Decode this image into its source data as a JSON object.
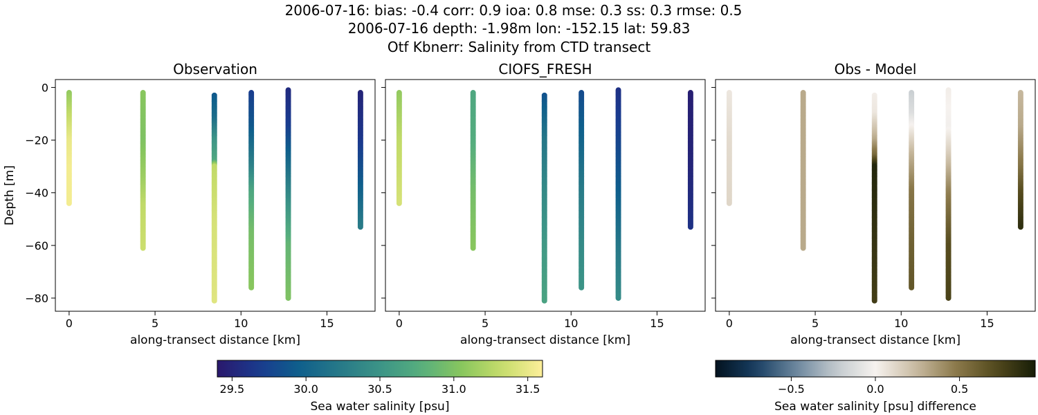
{
  "figure": {
    "title_lines": [
      "2006-07-16: bias: -0.4  corr: 0.9  ioa: 0.8  mse: 0.3  ss: 0.3  rmse: 0.5",
      "2006-07-16 depth: -1.98m lon: -152.15 lat: 59.83",
      "Otf Kbnerr: Salinity from CTD transect"
    ]
  },
  "chart_data": [
    {
      "type": "scatter",
      "title": "Observation",
      "xlabel": "along-transect distance [km]",
      "ylabel": "Depth [m]",
      "xlim": [
        -0.8,
        17.8
      ],
      "ylim": [
        -85,
        3
      ],
      "xticks": [
        0,
        5,
        10,
        15
      ],
      "yticks": [
        0,
        -20,
        -40,
        -60,
        -80
      ],
      "grid": false,
      "colormap": "haline",
      "vmin": 29.4,
      "vmax": 31.6,
      "profiles": [
        {
          "x": 0.0,
          "top": -2,
          "bottom": -44,
          "values": [
            [
              -2,
              31.1
            ],
            [
              -10,
              31.3
            ],
            [
              -20,
              31.5
            ],
            [
              -30,
              31.55
            ],
            [
              -44,
              31.55
            ]
          ]
        },
        {
          "x": 4.3,
          "top": -2,
          "bottom": -61,
          "values": [
            [
              -2,
              31.05
            ],
            [
              -20,
              31.0
            ],
            [
              -35,
              31.15
            ],
            [
              -45,
              31.3
            ],
            [
              -61,
              31.35
            ]
          ]
        },
        {
          "x": 8.45,
          "top": -3,
          "bottom": -81,
          "values": [
            [
              -3,
              29.9
            ],
            [
              -12,
              30.1
            ],
            [
              -20,
              30.5
            ],
            [
              -28,
              30.7
            ],
            [
              -30,
              31.3
            ],
            [
              -50,
              31.4
            ],
            [
              -81,
              31.45
            ]
          ]
        },
        {
          "x": 10.6,
          "top": -2,
          "bottom": -76,
          "values": [
            [
              -2,
              29.7
            ],
            [
              -15,
              29.9
            ],
            [
              -30,
              30.3
            ],
            [
              -40,
              30.7
            ],
            [
              -55,
              30.95
            ],
            [
              -76,
              31.05
            ]
          ]
        },
        {
          "x": 12.75,
          "top": -1,
          "bottom": -80,
          "values": [
            [
              -1,
              29.55
            ],
            [
              -15,
              29.7
            ],
            [
              -30,
              30.1
            ],
            [
              -45,
              30.5
            ],
            [
              -60,
              30.85
            ],
            [
              -80,
              31.0
            ]
          ]
        },
        {
          "x": 16.95,
          "top": -2,
          "bottom": -53,
          "values": [
            [
              -2,
              29.5
            ],
            [
              -20,
              29.65
            ],
            [
              -35,
              29.9
            ],
            [
              -53,
              30.25
            ]
          ]
        }
      ]
    },
    {
      "type": "scatter",
      "title": "CIOFS_FRESH",
      "xlabel": "along-transect distance [km]",
      "ylabel": "",
      "xlim": [
        -0.8,
        17.8
      ],
      "ylim": [
        -85,
        3
      ],
      "xticks": [
        0,
        5,
        10,
        15
      ],
      "yticks": [
        0,
        -20,
        -40,
        -60,
        -80
      ],
      "grid": false,
      "colormap": "haline",
      "vmin": 29.4,
      "vmax": 31.6,
      "profiles": [
        {
          "x": 0.0,
          "top": -2,
          "bottom": -44,
          "values": [
            [
              -2,
              31.1
            ],
            [
              -20,
              31.3
            ],
            [
              -44,
              31.4
            ]
          ]
        },
        {
          "x": 4.3,
          "top": -2,
          "bottom": -61,
          "values": [
            [
              -2,
              30.7
            ],
            [
              -20,
              30.75
            ],
            [
              -40,
              30.95
            ],
            [
              -61,
              31.05
            ]
          ]
        },
        {
          "x": 8.45,
          "top": -3,
          "bottom": -81,
          "values": [
            [
              -3,
              29.85
            ],
            [
              -20,
              30.2
            ],
            [
              -40,
              30.4
            ],
            [
              -60,
              30.55
            ],
            [
              -81,
              30.65
            ]
          ]
        },
        {
          "x": 10.6,
          "top": -2,
          "bottom": -76,
          "values": [
            [
              -2,
              29.8
            ],
            [
              -20,
              30.0
            ],
            [
              -40,
              30.25
            ],
            [
              -60,
              30.4
            ],
            [
              -76,
              30.5
            ]
          ]
        },
        {
          "x": 12.75,
          "top": -1,
          "bottom": -80,
          "values": [
            [
              -1,
              29.6
            ],
            [
              -20,
              29.75
            ],
            [
              -40,
              29.95
            ],
            [
              -60,
              30.2
            ],
            [
              -80,
              30.4
            ]
          ]
        },
        {
          "x": 16.95,
          "top": -2,
          "bottom": -53,
          "values": [
            [
              -2,
              29.45
            ],
            [
              -30,
              29.5
            ],
            [
              -53,
              29.6
            ]
          ]
        }
      ]
    },
    {
      "type": "scatter",
      "title": "Obs - Model",
      "xlabel": "along-transect distance [km]",
      "ylabel": "",
      "xlim": [
        -0.8,
        17.8
      ],
      "ylim": [
        -85,
        3
      ],
      "xticks": [
        0,
        5,
        10,
        15
      ],
      "yticks": [
        0,
        -20,
        -40,
        -60,
        -80
      ],
      "grid": false,
      "colormap": "diff",
      "vmin": -0.95,
      "vmax": 0.95,
      "profiles": [
        {
          "x": 0.0,
          "top": -2,
          "bottom": -44,
          "values": [
            [
              -2,
              0.05
            ],
            [
              -20,
              0.1
            ],
            [
              -44,
              0.12
            ]
          ]
        },
        {
          "x": 4.3,
          "top": -2,
          "bottom": -61,
          "values": [
            [
              -2,
              0.3
            ],
            [
              -20,
              0.3
            ],
            [
              -40,
              0.3
            ],
            [
              -61,
              0.3
            ]
          ]
        },
        {
          "x": 8.45,
          "top": -3,
          "bottom": -81,
          "values": [
            [
              -3,
              0.02
            ],
            [
              -10,
              0.05
            ],
            [
              -20,
              0.3
            ],
            [
              -26,
              0.55
            ],
            [
              -30,
              0.9
            ],
            [
              -50,
              0.85
            ],
            [
              -81,
              0.78
            ]
          ]
        },
        {
          "x": 10.6,
          "top": -2,
          "bottom": -76,
          "values": [
            [
              -2,
              -0.2
            ],
            [
              -10,
              -0.12
            ],
            [
              -25,
              0.25
            ],
            [
              -40,
              0.5
            ],
            [
              -60,
              0.6
            ],
            [
              -76,
              0.65
            ]
          ]
        },
        {
          "x": 12.75,
          "top": -1,
          "bottom": -80,
          "values": [
            [
              -1,
              0.02
            ],
            [
              -15,
              -0.02
            ],
            [
              -25,
              0.15
            ],
            [
              -40,
              0.45
            ],
            [
              -60,
              0.7
            ],
            [
              -80,
              0.75
            ]
          ]
        },
        {
          "x": 16.95,
          "top": -2,
          "bottom": -53,
          "values": [
            [
              -2,
              0.25
            ],
            [
              -15,
              0.3
            ],
            [
              -30,
              0.5
            ],
            [
              -40,
              0.7
            ],
            [
              -53,
              0.85
            ]
          ]
        }
      ]
    }
  ],
  "colorbars": [
    {
      "colormap": "haline",
      "vmin": 29.4,
      "vmax": 31.6,
      "ticks": [
        29.5,
        30.0,
        30.5,
        31.0,
        31.5
      ],
      "tick_labels": [
        "29.5",
        "30.0",
        "30.5",
        "31.0",
        "31.5"
      ],
      "label": "Sea water salinity [psu]"
    },
    {
      "colormap": "diff",
      "vmin": -0.95,
      "vmax": 0.95,
      "ticks": [
        -0.5,
        0.0,
        0.5
      ],
      "tick_labels": [
        "−0.5",
        "0.0",
        "0.5"
      ],
      "label": "Sea water salinity [psu] difference"
    }
  ],
  "colormaps": {
    "haline": [
      "#2a186c",
      "#1a3a8e",
      "#0f5f8c",
      "#277988",
      "#3c9487",
      "#56ae7e",
      "#88c65e",
      "#c6dc6a",
      "#fdef9a"
    ],
    "diff": [
      "#03121f",
      "#173e62",
      "#6a859c",
      "#c2c9cd",
      "#f6f2ef",
      "#c9bba2",
      "#8c7a4c",
      "#544a1d",
      "#161d07"
    ]
  }
}
